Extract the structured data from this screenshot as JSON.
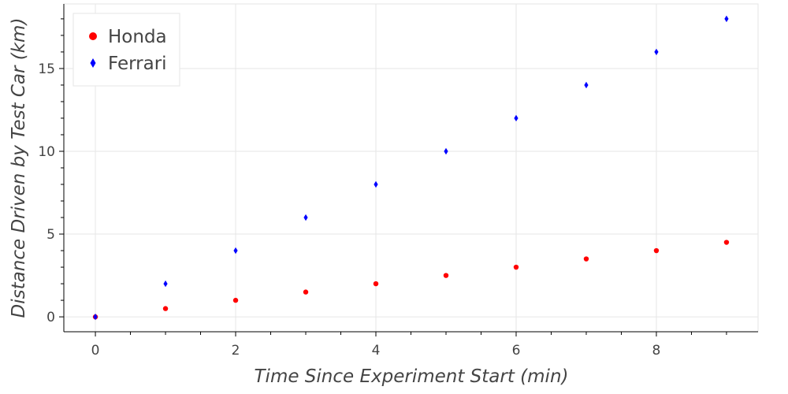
{
  "chart_data": {
    "type": "scatter",
    "title": "",
    "xlabel": "Time Since Experiment Start (min)",
    "ylabel": "Distance Driven by Test Car (km)",
    "xlim": [
      -0.45,
      9.45
    ],
    "ylim": [
      -0.9,
      18.9
    ],
    "xticks": [
      0,
      2,
      4,
      6,
      8
    ],
    "xtick_labels": [
      "0",
      "2",
      "4",
      "6",
      "8"
    ],
    "yticks": [
      0,
      5,
      10,
      15
    ],
    "ytick_labels": [
      "0",
      "5",
      "10",
      "15"
    ],
    "grid": true,
    "legend_position": "top-left",
    "series": [
      {
        "name": "Honda",
        "marker": "circle",
        "color": "#ff0000",
        "x": [
          0,
          1,
          2,
          3,
          4,
          5,
          6,
          7,
          8,
          9
        ],
        "y": [
          0,
          0.5,
          1,
          1.5,
          2,
          2.5,
          3,
          3.5,
          4,
          4.5
        ]
      },
      {
        "name": "Ferrari",
        "marker": "diamond",
        "color": "#0000ff",
        "x": [
          0,
          1,
          2,
          3,
          4,
          5,
          6,
          7,
          8,
          9
        ],
        "y": [
          0,
          2,
          4,
          6,
          8,
          10,
          12,
          14,
          16,
          18
        ]
      }
    ]
  }
}
